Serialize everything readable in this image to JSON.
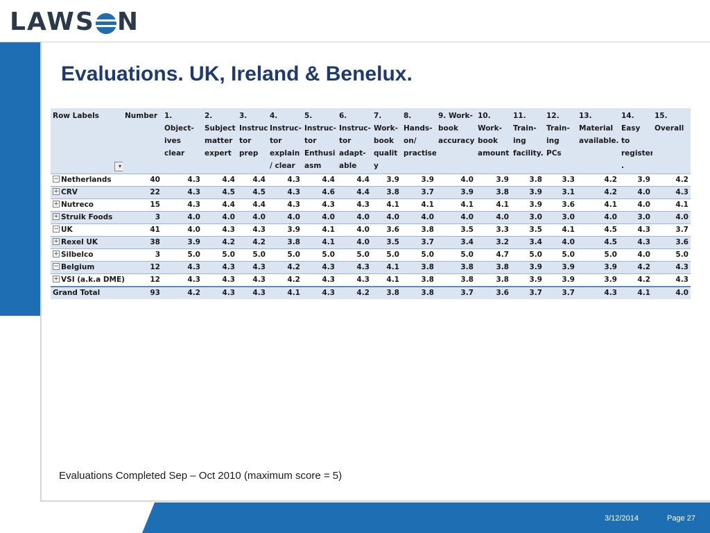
{
  "logo": {
    "left": "LAWS",
    "right": "N"
  },
  "slide": {
    "title": "Evaluations. UK, Ireland & Benelux.",
    "footnote": "Evaluations Completed Sep – Oct 2010 (maximum score = 5)"
  },
  "table": {
    "headers": [
      [
        "Row Labels"
      ],
      [
        "Number"
      ],
      [
        "1. Object-",
        "ives clear"
      ],
      [
        "2.",
        "Subject",
        "matter",
        "expert"
      ],
      [
        "3.",
        "Instruc-",
        "tor",
        "prep"
      ],
      [
        "4.",
        "Instruc-",
        "tor",
        "explain",
        "/ clear"
      ],
      [
        "5.",
        "Instruc-",
        "tor",
        "Enthusi",
        "asm"
      ],
      [
        "6.",
        "Instruc-",
        "tor",
        "adapt-",
        "able"
      ],
      [
        "7.",
        "Work-",
        "book",
        "qualit",
        "y"
      ],
      [
        "8.",
        "Hands-",
        "on/",
        "practise"
      ],
      [
        "9. Work-",
        "book",
        "accuracy"
      ],
      [
        "10.",
        "Work-",
        "book",
        "amount"
      ],
      [
        "11.",
        "Train-",
        "ing",
        "facility."
      ],
      [
        "12.",
        "Train-",
        "ing PCs"
      ],
      [
        "13.",
        "Material",
        "available."
      ],
      [
        "14.",
        "Easy to",
        "register",
        "."
      ],
      [
        "15.",
        "Overall"
      ]
    ],
    "rows": [
      {
        "toggle": "⊟",
        "label": "Netherlands",
        "values": [
          "40",
          "4.3",
          "4.4",
          "4.4",
          "4.3",
          "4.4",
          "4.4",
          "3.9",
          "3.9",
          "4.0",
          "3.9",
          "3.8",
          "3.3",
          "4.2",
          "3.9",
          "4.2"
        ]
      },
      {
        "toggle": "⊞",
        "label": "CRV",
        "values": [
          "22",
          "4.3",
          "4.5",
          "4.5",
          "4.3",
          "4.6",
          "4.4",
          "3.8",
          "3.7",
          "3.9",
          "3.8",
          "3.9",
          "3.1",
          "4.2",
          "4.0",
          "4.3"
        ]
      },
      {
        "toggle": "⊞",
        "label": "Nutreco",
        "values": [
          "15",
          "4.3",
          "4.4",
          "4.4",
          "4.3",
          "4.3",
          "4.3",
          "4.1",
          "4.1",
          "4.1",
          "4.1",
          "3.9",
          "3.6",
          "4.1",
          "4.0",
          "4.1"
        ]
      },
      {
        "toggle": "⊞",
        "label": "Struik Foods",
        "values": [
          "3",
          "4.0",
          "4.0",
          "4.0",
          "4.0",
          "4.0",
          "4.0",
          "4.0",
          "4.0",
          "4.0",
          "4.0",
          "3.0",
          "3.0",
          "4.0",
          "3.0",
          "4.0"
        ]
      },
      {
        "toggle": "⊟",
        "label": "UK",
        "values": [
          "41",
          "4.0",
          "4.3",
          "4.3",
          "3.9",
          "4.1",
          "4.0",
          "3.6",
          "3.8",
          "3.5",
          "3.3",
          "3.5",
          "4.1",
          "4.5",
          "4.3",
          "3.7"
        ]
      },
      {
        "toggle": "⊞",
        "label": "Rexel UK",
        "values": [
          "38",
          "3.9",
          "4.2",
          "4.2",
          "3.8",
          "4.1",
          "4.0",
          "3.5",
          "3.7",
          "3.4",
          "3.2",
          "3.4",
          "4.0",
          "4.5",
          "4.3",
          "3.6"
        ]
      },
      {
        "toggle": "⊞",
        "label": "Silbelco",
        "values": [
          "3",
          "5.0",
          "5.0",
          "5.0",
          "5.0",
          "5.0",
          "5.0",
          "5.0",
          "5.0",
          "5.0",
          "4.7",
          "5.0",
          "5.0",
          "5.0",
          "4.0",
          "5.0"
        ]
      },
      {
        "toggle": "⊟",
        "label": "Belgium",
        "values": [
          "12",
          "4.3",
          "4.3",
          "4.3",
          "4.2",
          "4.3",
          "4.3",
          "4.1",
          "3.8",
          "3.8",
          "3.8",
          "3.9",
          "3.9",
          "3.9",
          "4.2",
          "4.3"
        ]
      },
      {
        "toggle": "⊞",
        "label": "VSI (a.k.a DME)",
        "values": [
          "12",
          "4.3",
          "4.3",
          "4.3",
          "4.2",
          "4.3",
          "4.3",
          "4.1",
          "3.8",
          "3.8",
          "3.8",
          "3.9",
          "3.9",
          "3.9",
          "4.2",
          "4.3"
        ]
      }
    ],
    "grand_total": {
      "label": "Grand Total",
      "values": [
        "93",
        "4.2",
        "4.3",
        "4.3",
        "4.1",
        "4.3",
        "4.2",
        "3.8",
        "3.8",
        "3.7",
        "3.6",
        "3.7",
        "3.7",
        "4.3",
        "4.1",
        "4.0"
      ]
    },
    "filter_icon": "filter-dropdown-icon"
  },
  "footer": {
    "date": "3/12/2014",
    "page": "Page 27"
  },
  "colors": {
    "brand_blue": "#1d6eb3",
    "title_navy": "#1e3a6e",
    "table_band": "#dbe5f1"
  }
}
